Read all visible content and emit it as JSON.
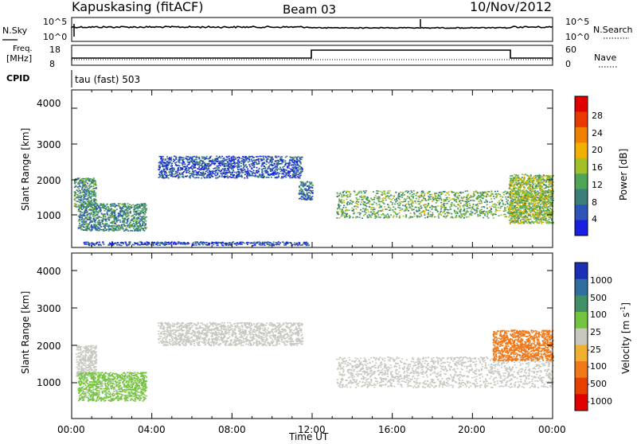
{
  "header": {
    "station": "Kapuskasing (fitACF)",
    "beam": "Beam 03",
    "date": "10/Nov/2012"
  },
  "noise_panel": {
    "left_label": "N.Sky",
    "right_label": "N.Search",
    "left_ticks": [
      "10^5",
      "10^0"
    ],
    "right_ticks": [
      "10^5",
      "10^0"
    ]
  },
  "freq_panel": {
    "left_label_1": "Freq.",
    "left_label_2": "[MHz]",
    "right_label": "Nave",
    "left_ticks": [
      "18",
      "8"
    ],
    "right_ticks": [
      "60",
      "0"
    ]
  },
  "cpid_label": "CPID",
  "cpid_text": "tau (fast) 503",
  "power_panel": {
    "ylabel": "Slant Range [km]",
    "yticks": [
      "1000",
      "2000",
      "3000",
      "4000"
    ],
    "colorbar_label": "Power [dB]",
    "colorbar_ticks": [
      "4",
      "8",
      "12",
      "16",
      "20",
      "24",
      "28"
    ],
    "colorbar_colors": [
      "#1b1fe0",
      "#2d55b8",
      "#3c7f7a",
      "#4ea555",
      "#a4c028",
      "#f2b000",
      "#f08000",
      "#e83a00",
      "#e00000"
    ]
  },
  "velocity_panel": {
    "ylabel": "Slant Range [km]",
    "yticks": [
      "1000",
      "2000",
      "3000",
      "4000"
    ],
    "colorbar_label": "Velocity [m s",
    "colorbar_label_sup": "-1",
    "colorbar_label_end": "]",
    "colorbar_ticks": [
      "1000",
      "500",
      "100",
      "25",
      "-25",
      "-100",
      "-500",
      "-1000"
    ],
    "colorbar_colors": [
      "#1a2fb5",
      "#2f6fa0",
      "#3f9066",
      "#74c43f",
      "#c8c8c0",
      "#f0b030",
      "#f07818",
      "#e84000",
      "#e00000"
    ]
  },
  "xaxis": {
    "label": "Time UT",
    "ticks": [
      "00:00",
      "04:00",
      "08:00",
      "12:00",
      "16:00",
      "20:00",
      "00:00"
    ]
  },
  "chart_data": [
    {
      "type": "heatmap",
      "title": "Power [dB]",
      "xlabel": "Time UT",
      "ylabel": "Slant Range [km]",
      "x_range_hours": [
        0,
        24
      ],
      "ylim": [
        180,
        4500
      ],
      "value_range": [
        0,
        30
      ],
      "regions": [
        {
          "t_start": 0.1,
          "t_end": 1.2,
          "r_low": 1300,
          "r_high": 2100,
          "power": 10
        },
        {
          "t_start": 0.3,
          "t_end": 3.7,
          "r_low": 650,
          "r_high": 1400,
          "power": 9
        },
        {
          "t_start": 4.3,
          "t_end": 11.5,
          "r_low": 2100,
          "r_high": 2700,
          "power": 5
        },
        {
          "t_start": 11.3,
          "t_end": 12.0,
          "r_low": 1500,
          "r_high": 2000,
          "power": 7
        },
        {
          "t_start": 13.2,
          "t_end": 24.0,
          "r_low": 1000,
          "r_high": 1750,
          "power": 12
        },
        {
          "t_start": 21.8,
          "t_end": 24.0,
          "r_low": 850,
          "r_high": 2200,
          "power": 14
        },
        {
          "t_start": 0.5,
          "t_end": 11.8,
          "r_low": 250,
          "r_high": 350,
          "power": 4
        }
      ]
    },
    {
      "type": "heatmap",
      "title": "Velocity [m s-1]",
      "xlabel": "Time UT",
      "ylabel": "Slant Range [km]",
      "x_range_hours": [
        0,
        24
      ],
      "ylim": [
        180,
        4500
      ],
      "value_range": [
        -1000,
        1000
      ],
      "regions": [
        {
          "t_start": 0.2,
          "t_end": 1.2,
          "r_low": 1300,
          "r_high": 2100,
          "velocity": 0
        },
        {
          "t_start": 0.3,
          "t_end": 3.7,
          "r_low": 650,
          "r_high": 1400,
          "velocity": 60
        },
        {
          "t_start": 4.3,
          "t_end": 11.5,
          "r_low": 2100,
          "r_high": 2700,
          "velocity": 0
        },
        {
          "t_start": 13.2,
          "t_end": 24.0,
          "r_low": 1000,
          "r_high": 1800,
          "velocity": 0
        },
        {
          "t_start": 21.0,
          "t_end": 24.0,
          "r_low": 1700,
          "r_high": 2500,
          "velocity": -300
        }
      ]
    }
  ]
}
